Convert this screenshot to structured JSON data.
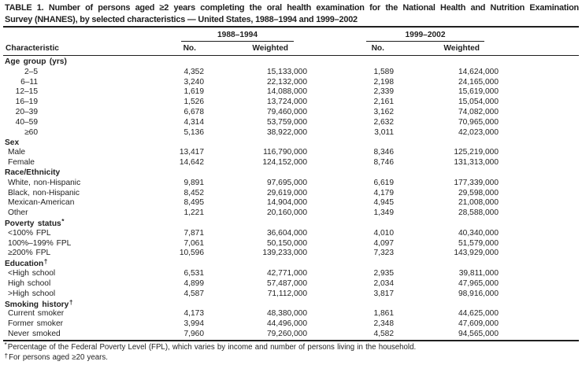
{
  "title": {
    "line1": "TABLE 1. Number of persons aged ≥2 years completing the oral health examination for the National Health and Nutrition Examination",
    "line2": "Survey (NHANES), by selected characteristics — United States, 1988–1994 and 1999–2002"
  },
  "header": {
    "characteristic": "Characteristic",
    "groups": [
      {
        "label": "1988–1994",
        "no": "No.",
        "weighted": "Weighted"
      },
      {
        "label": "1999–2002",
        "no": "No.",
        "weighted": "Weighted"
      }
    ]
  },
  "sections": [
    {
      "label": "Age group (yrs)",
      "marker": "",
      "rows": [
        {
          "label": "2–5",
          "values": [
            "4,352",
            "15,133,000",
            "1,589",
            "14,624,000"
          ]
        },
        {
          "label": "6–11",
          "values": [
            "3,240",
            "22,132,000",
            "2,198",
            "24,165,000"
          ]
        },
        {
          "label": "12–15",
          "values": [
            "1,619",
            "14,088,000",
            "2,339",
            "15,619,000"
          ]
        },
        {
          "label": "16–19",
          "values": [
            "1,526",
            "13,724,000",
            "2,161",
            "15,054,000"
          ]
        },
        {
          "label": "20–39",
          "values": [
            "6,678",
            "79,460,000",
            "3,162",
            "74,082,000"
          ]
        },
        {
          "label": "40–59",
          "values": [
            "4,314",
            "53,759,000",
            "2,632",
            "70,965,000"
          ]
        },
        {
          "label": "≥60",
          "values": [
            "5,136",
            "38,922,000",
            "3,011",
            "42,023,000"
          ]
        }
      ]
    },
    {
      "label": "Sex",
      "marker": "",
      "rows": [
        {
          "label": "Male",
          "values": [
            "13,417",
            "116,790,000",
            "8,346",
            "125,219,000"
          ]
        },
        {
          "label": "Female",
          "values": [
            "14,642",
            "124,152,000",
            "8,746",
            "131,313,000"
          ]
        }
      ]
    },
    {
      "label": "Race/Ethnicity",
      "marker": "",
      "rows": [
        {
          "label": "White, non-Hispanic",
          "values": [
            "9,891",
            "97,695,000",
            "6,619",
            "177,339,000"
          ]
        },
        {
          "label": "Black, non-Hispanic",
          "values": [
            "8,452",
            "29,619,000",
            "4,179",
            "29,598,000"
          ]
        },
        {
          "label": "Mexican-American",
          "values": [
            "8,495",
            "14,904,000",
            "4,945",
            "21,008,000"
          ]
        },
        {
          "label": "Other",
          "values": [
            "1,221",
            "20,160,000",
            "1,349",
            "28,588,000"
          ]
        }
      ]
    },
    {
      "label": "Poverty status",
      "marker": "*",
      "rows": [
        {
          "label": "<100% FPL",
          "values": [
            "7,871",
            "36,604,000",
            "4,010",
            "40,340,000"
          ]
        },
        {
          "label": "100%–199% FPL",
          "values": [
            "7,061",
            "50,150,000",
            "4,097",
            "51,579,000"
          ]
        },
        {
          "label": "≥200% FPL",
          "values": [
            "10,596",
            "139,233,000",
            "7,323",
            "143,929,000"
          ]
        }
      ]
    },
    {
      "label": "Education",
      "marker": "†",
      "rows": [
        {
          "label": "<High school",
          "values": [
            "6,531",
            "42,771,000",
            "2,935",
            "39,811,000"
          ]
        },
        {
          "label": "High school",
          "values": [
            "4,899",
            "57,487,000",
            "2,034",
            "47,965,000"
          ]
        },
        {
          "label": ">High school",
          "values": [
            "4,587",
            "71,112,000",
            "3,817",
            "98,916,000"
          ]
        }
      ]
    },
    {
      "label": "Smoking history",
      "marker": "†",
      "rows": [
        {
          "label": "Current smoker",
          "values": [
            "4,173",
            "48,380,000",
            "1,861",
            "44,625,000"
          ]
        },
        {
          "label": "Former smoker",
          "values": [
            "3,994",
            "44,496,000",
            "2,348",
            "47,609,000"
          ]
        },
        {
          "label": "Never smoked",
          "values": [
            "7,960",
            "79,260,000",
            "4,582",
            "94,565,000"
          ]
        }
      ]
    }
  ],
  "footnotes": [
    {
      "marker": "*",
      "text": "Percentage of the Federal Poverty Level (FPL), which varies by income and number of persons living in the household."
    },
    {
      "marker": "†",
      "text": "For persons aged ≥20 years."
    }
  ]
}
